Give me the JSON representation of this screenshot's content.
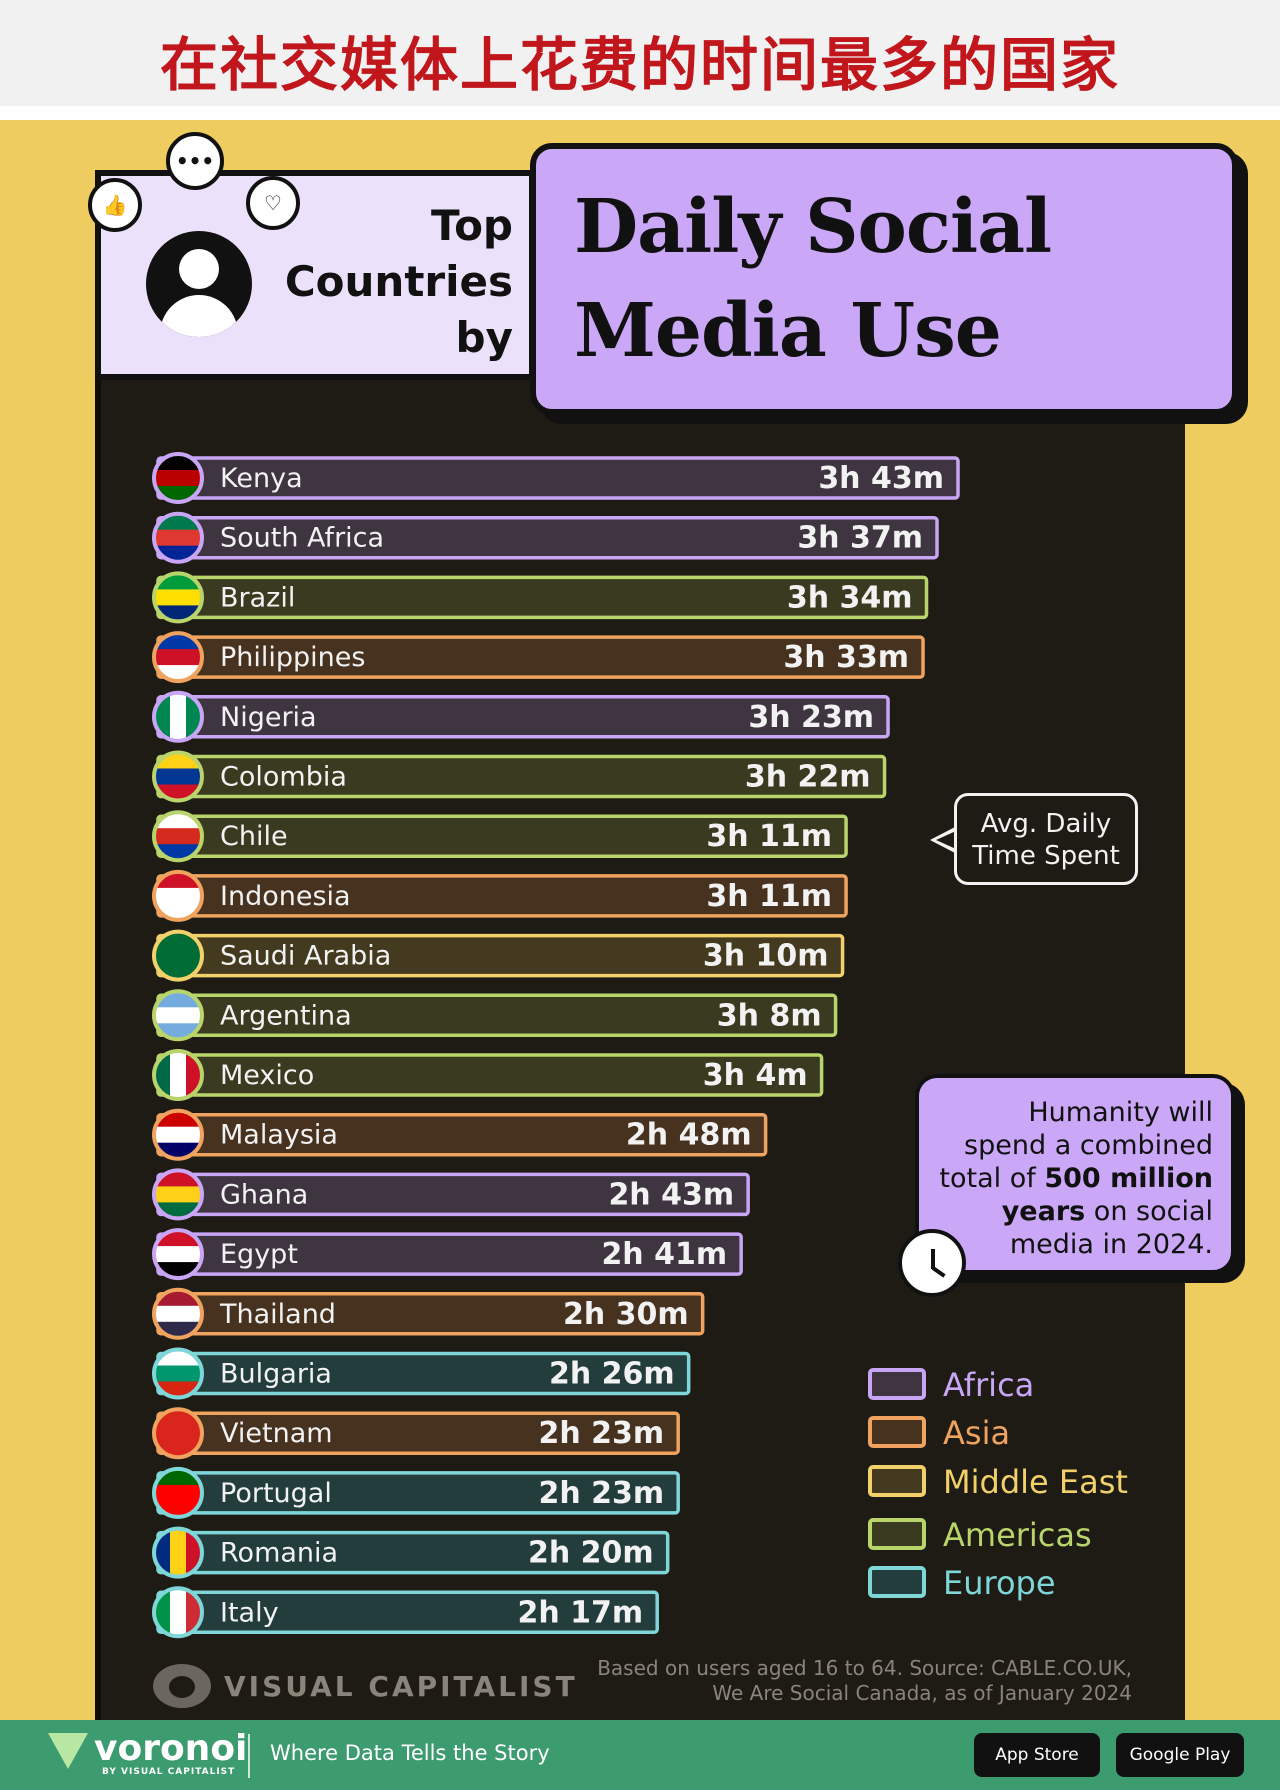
{
  "header": {
    "cn_title": "在社交媒体上花费的时间最多的国家"
  },
  "title": {
    "top_words": [
      "Top",
      "Countries",
      "by"
    ],
    "main_lines": [
      "Daily Social",
      "Media Use"
    ]
  },
  "icons": [
    "avatar-icon",
    "like-icon",
    "chat-icon",
    "heart-icon",
    "clock-icon",
    "flag-icon"
  ],
  "callouts": {
    "avg_line1": "Avg. Daily",
    "avg_line2": "Time Spent",
    "humanity_lines": [
      "Humanity will",
      "spend a combined",
      "total of ",
      "500 million",
      "years",
      " on social",
      "media in 2024."
    ]
  },
  "chart_data": {
    "type": "bar",
    "orientation": "horizontal",
    "title": "Top Countries by Daily Social Media Use",
    "value_unit": "minutes",
    "categories": [
      "Kenya",
      "South Africa",
      "Brazil",
      "Philippines",
      "Nigeria",
      "Colombia",
      "Chile",
      "Indonesia",
      "Saudi Arabia",
      "Argentina",
      "Mexico",
      "Malaysia",
      "Ghana",
      "Egypt",
      "Thailand",
      "Bulgaria",
      "Vietnam",
      "Portugal",
      "Romania",
      "Italy"
    ],
    "values": [
      223,
      217,
      214,
      213,
      203,
      202,
      191,
      191,
      190,
      188,
      184,
      168,
      163,
      161,
      150,
      146,
      143,
      143,
      140,
      137
    ],
    "value_labels": [
      "3h 43m",
      "3h 37m",
      "3h 34m",
      "3h 33m",
      "3h 23m",
      "3h 22m",
      "3h 11m",
      "3h 11m",
      "3h 10m",
      "3h 8m",
      "3h 4m",
      "2h 48m",
      "2h 43m",
      "2h 41m",
      "2h 30m",
      "2h 26m",
      "2h 23m",
      "2h 23m",
      "2h 20m",
      "2h 17m"
    ],
    "regions": [
      "Africa",
      "Africa",
      "Americas",
      "Asia",
      "Africa",
      "Americas",
      "Americas",
      "Asia",
      "Middle East",
      "Americas",
      "Americas",
      "Asia",
      "Africa",
      "Africa",
      "Asia",
      "Europe",
      "Asia",
      "Europe",
      "Europe",
      "Europe"
    ],
    "legend": [
      {
        "name": "Africa",
        "color": "#c9a6f5",
        "fill": "#3e3540"
      },
      {
        "name": "Asia",
        "color": "#f0a35e",
        "fill": "#47321f"
      },
      {
        "name": "Middle East",
        "color": "#f2d16b",
        "fill": "#443a1f"
      },
      {
        "name": "Americas",
        "color": "#b9d46a",
        "fill": "#3a3a20"
      },
      {
        "name": "Europe",
        "color": "#7fd6d8",
        "fill": "#233c3c"
      }
    ],
    "flag_colors": {
      "Kenya": [
        "#000000",
        "#bb0000",
        "#006600"
      ],
      "South Africa": [
        "#007a4d",
        "#de3831",
        "#002395"
      ],
      "Brazil": [
        "#009c3b",
        "#ffdf00",
        "#002776"
      ],
      "Philippines": [
        "#0038a8",
        "#ce1126",
        "#ffffff"
      ],
      "Nigeria": [
        "#008751",
        "#ffffff",
        "#008751"
      ],
      "Colombia": [
        "#fcd116",
        "#003893",
        "#ce1126"
      ],
      "Chile": [
        "#ffffff",
        "#d52b1e",
        "#0039a6"
      ],
      "Indonesia": [
        "#ce1126",
        "#ffffff",
        "#ffffff"
      ],
      "Saudi Arabia": [
        "#006c35",
        "#006c35",
        "#006c35"
      ],
      "Argentina": [
        "#74acdf",
        "#ffffff",
        "#74acdf"
      ],
      "Mexico": [
        "#006847",
        "#ffffff",
        "#ce1126"
      ],
      "Malaysia": [
        "#cc0001",
        "#ffffff",
        "#010066"
      ],
      "Ghana": [
        "#ce1126",
        "#fcd116",
        "#006b3f"
      ],
      "Egypt": [
        "#ce1126",
        "#ffffff",
        "#000000"
      ],
      "Thailand": [
        "#a51931",
        "#ffffff",
        "#2d2a4a"
      ],
      "Bulgaria": [
        "#ffffff",
        "#00966e",
        "#d62612"
      ],
      "Vietnam": [
        "#da251d",
        "#da251d",
        "#da251d"
      ],
      "Portugal": [
        "#006600",
        "#ff0000",
        "#ff0000"
      ],
      "Romania": [
        "#002b7f",
        "#fcd116",
        "#ce1126"
      ],
      "Italy": [
        "#009246",
        "#ffffff",
        "#ce2b37"
      ]
    }
  },
  "footer": {
    "source_line1": "Based on users aged 16 to 64. Source: CABLE.CO.UK,",
    "source_line2": "We Are Social Canada, as of January 2024",
    "vc_brand": "VISUAL CAPITALIST",
    "voronoi_brand": "voronoi",
    "voronoi_sub": "BY VISUAL CAPITALIST",
    "tagline": "Where Data Tells the Story",
    "app_store": "App Store",
    "google_play": "Google Play"
  }
}
